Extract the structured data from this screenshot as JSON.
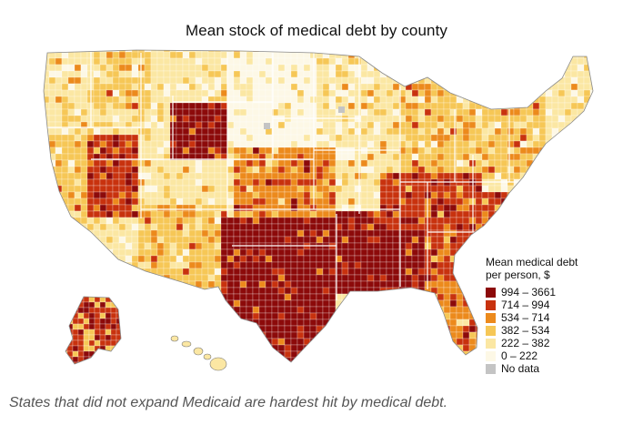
{
  "title": "Mean stock of medical debt by county",
  "legend": {
    "title_line1": "Mean medical debt",
    "title_line2": "per person, $",
    "items": [
      {
        "label": "994 – 3661",
        "color": "#8c0a0a"
      },
      {
        "label": "714 – 994",
        "color": "#c8320e"
      },
      {
        "label": "534 – 714",
        "color": "#ec8a1c"
      },
      {
        "label": "382 – 534",
        "color": "#f6c756"
      },
      {
        "label": "222 – 382",
        "color": "#fbe7a3"
      },
      {
        "label": "0 – 222",
        "color": "#fdf8e6"
      },
      {
        "label": "No data",
        "color": "#c4c4c4"
      }
    ]
  },
  "caption": "States that did not expand Medicaid are hardest hit by medical debt.",
  "map": {
    "regions": [
      {
        "id": "pacific-northwest",
        "level": 4
      },
      {
        "id": "northern-rockies",
        "level": 3
      },
      {
        "id": "wyoming",
        "level": 0
      },
      {
        "id": "northern-plains",
        "level": 5
      },
      {
        "id": "upper-midwest",
        "level": 4
      },
      {
        "id": "great-lakes",
        "level": 3
      },
      {
        "id": "northeast",
        "level": 3
      },
      {
        "id": "new-england",
        "level": 4
      },
      {
        "id": "nevada",
        "level": 1
      },
      {
        "id": "california",
        "level": 3
      },
      {
        "id": "southwest",
        "level": 3
      },
      {
        "id": "colorado",
        "level": 4
      },
      {
        "id": "central-plains",
        "level": 2
      },
      {
        "id": "texas",
        "level": 0
      },
      {
        "id": "deep-south",
        "level": 0
      },
      {
        "id": "southeast-coast",
        "level": 1
      },
      {
        "id": "appalachia",
        "level": 1
      },
      {
        "id": "florida",
        "level": 2
      },
      {
        "id": "alaska",
        "level": 1
      },
      {
        "id": "hawaii",
        "level": 4
      }
    ]
  }
}
